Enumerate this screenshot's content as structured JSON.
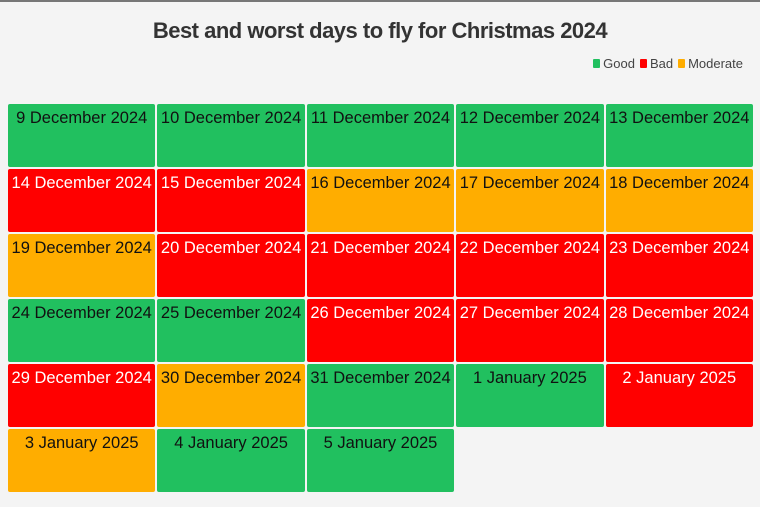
{
  "chart_data": {
    "type": "table",
    "title": "Best and worst days to fly for Christmas 2024",
    "legend": [
      {
        "label": "Good",
        "color": "#21c05f"
      },
      {
        "label": "Bad",
        "color": "#ff0000"
      },
      {
        "label": "Moderate",
        "color": "#ffad00"
      }
    ],
    "legend_placement": "top-right",
    "cells": [
      {
        "date": "9 December 2024",
        "rating": "Good"
      },
      {
        "date": "10 December 2024",
        "rating": "Good"
      },
      {
        "date": "11 December 2024",
        "rating": "Good"
      },
      {
        "date": "12 December 2024",
        "rating": "Good"
      },
      {
        "date": "13 December 2024",
        "rating": "Good"
      },
      {
        "date": "14 December 2024",
        "rating": "Bad"
      },
      {
        "date": "15 December 2024",
        "rating": "Bad"
      },
      {
        "date": "16 December 2024",
        "rating": "Moderate"
      },
      {
        "date": "17 December 2024",
        "rating": "Moderate"
      },
      {
        "date": "18 December 2024",
        "rating": "Moderate"
      },
      {
        "date": "19 December 2024",
        "rating": "Moderate"
      },
      {
        "date": "20 December 2024",
        "rating": "Bad"
      },
      {
        "date": "21 December 2024",
        "rating": "Bad"
      },
      {
        "date": "22 December 2024",
        "rating": "Bad"
      },
      {
        "date": "23 December 2024",
        "rating": "Bad"
      },
      {
        "date": "24 December 2024",
        "rating": "Good"
      },
      {
        "date": "25 December 2024",
        "rating": "Good"
      },
      {
        "date": "26 December 2024",
        "rating": "Bad"
      },
      {
        "date": "27 December 2024",
        "rating": "Bad"
      },
      {
        "date": "28 December 2024",
        "rating": "Bad"
      },
      {
        "date": "29 December 2024",
        "rating": "Bad"
      },
      {
        "date": "30 December 2024",
        "rating": "Moderate"
      },
      {
        "date": "31 December 2024",
        "rating": "Good"
      },
      {
        "date": "1 January 2025",
        "rating": "Good"
      },
      {
        "date": "2 January 2025",
        "rating": "Bad"
      },
      {
        "date": "3 January 2025",
        "rating": "Moderate"
      },
      {
        "date": "4 January 2025",
        "rating": "Good"
      },
      {
        "date": "5 January 2025",
        "rating": "Good"
      }
    ]
  }
}
